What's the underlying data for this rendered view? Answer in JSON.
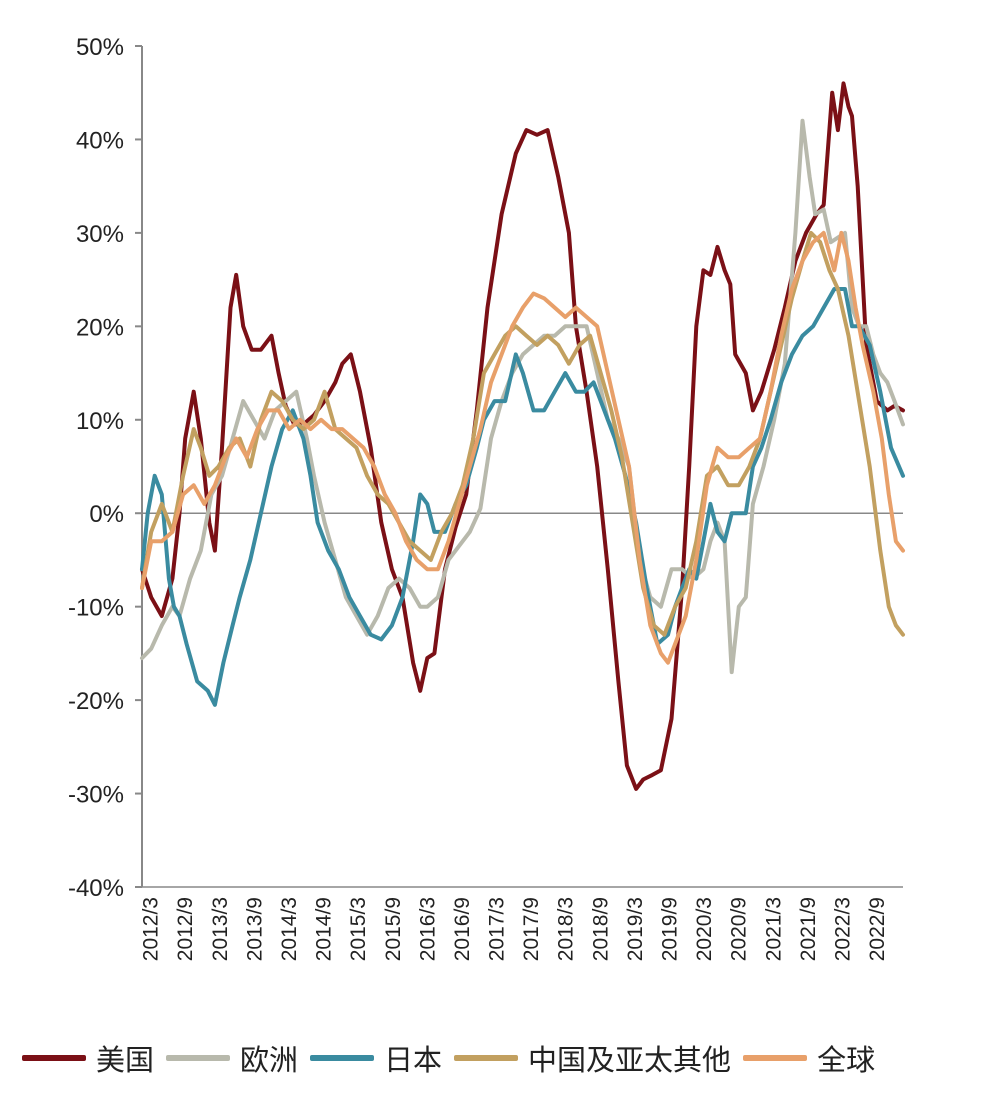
{
  "chart_data": {
    "type": "line",
    "title": "",
    "xlabel": "",
    "ylabel": "",
    "ylim": [
      -40,
      50
    ],
    "yticks": [
      50,
      40,
      30,
      20,
      10,
      0,
      -10,
      -20,
      -30,
      -40
    ],
    "ytick_labels": [
      "50%",
      "40%",
      "30%",
      "20%",
      "10%",
      "0%",
      "-10%",
      "-20%",
      "-30%",
      "-40%"
    ],
    "x_range": [
      2012.17,
      2022.92
    ],
    "xtick_labels": [
      "2012/3",
      "2012/9",
      "2013/3",
      "2013/9",
      "2014/3",
      "2014/9",
      "2015/3",
      "2015/9",
      "2016/3",
      "2016/9",
      "2017/3",
      "2017/9",
      "2018/3",
      "2018/9",
      "2019/3",
      "2019/9",
      "2020/3",
      "2020/9",
      "2021/3",
      "2021/9",
      "2022/3",
      "2022/9"
    ],
    "zero_line": true,
    "legend_position": "bottom",
    "series": [
      {
        "name": "美国",
        "color": "#7b1016",
        "x": [
          2012.17,
          2012.3,
          2012.45,
          2012.6,
          2012.7,
          2012.78,
          2012.9,
          2013.0,
          2013.12,
          2013.2,
          2013.3,
          2013.42,
          2013.5,
          2013.6,
          2013.72,
          2013.85,
          2014.0,
          2014.1,
          2014.2,
          2014.32,
          2014.45,
          2014.6,
          2014.75,
          2014.9,
          2015.0,
          2015.12,
          2015.25,
          2015.4,
          2015.55,
          2015.7,
          2015.85,
          2016.0,
          2016.1,
          2016.2,
          2016.3,
          2016.45,
          2016.6,
          2016.75,
          2016.9,
          2017.05,
          2017.25,
          2017.45,
          2017.6,
          2017.75,
          2017.9,
          2018.05,
          2018.2,
          2018.3,
          2018.45,
          2018.6,
          2018.75,
          2018.9,
          2019.02,
          2019.15,
          2019.25,
          2019.38,
          2019.5,
          2019.65,
          2019.8,
          2019.9,
          2020.0,
          2020.1,
          2020.2,
          2020.3,
          2020.4,
          2020.48,
          2020.55,
          2020.7,
          2020.8,
          2020.92,
          2021.0,
          2021.1,
          2021.25,
          2021.4,
          2021.55,
          2021.7,
          2021.8,
          2021.92,
          2022.0,
          2022.08,
          2022.15,
          2022.2,
          2022.28,
          2022.33,
          2022.4,
          2022.55,
          2022.7,
          2022.8,
          2022.92
        ],
        "y": [
          -6,
          -9,
          -11,
          -7,
          0,
          8,
          13,
          8,
          -1,
          -4,
          7,
          22,
          25.5,
          20,
          17.5,
          17.5,
          19,
          15,
          11.5,
          9.5,
          9.5,
          10.5,
          12,
          14,
          16,
          17,
          13,
          7,
          -1,
          -6,
          -9,
          -16,
          -19,
          -15.5,
          -15,
          -6,
          -1.5,
          2,
          11,
          22,
          32,
          38.5,
          41,
          40.5,
          41,
          36,
          30,
          20,
          13,
          5,
          -6,
          -18,
          -27,
          -29.5,
          -28.5,
          -28,
          -27.5,
          -22,
          -8,
          5,
          20,
          26,
          25.5,
          28.5,
          26,
          24.5,
          17,
          15,
          11,
          13,
          15,
          17.5,
          22,
          27,
          30,
          32,
          33,
          45,
          41,
          46,
          43.5,
          42.5,
          35,
          28,
          18,
          12,
          11,
          11.5,
          11
        ]
      },
      {
        "name": "欧洲",
        "color": "#b8b9ac",
        "x": [
          2012.17,
          2012.3,
          2012.45,
          2012.6,
          2012.7,
          2012.85,
          2013.0,
          2013.15,
          2013.3,
          2013.45,
          2013.6,
          2013.75,
          2013.9,
          2014.05,
          2014.2,
          2014.35,
          2014.5,
          2014.6,
          2014.75,
          2014.9,
          2015.05,
          2015.2,
          2015.35,
          2015.5,
          2015.65,
          2015.8,
          2015.95,
          2016.1,
          2016.2,
          2016.35,
          2016.5,
          2016.65,
          2016.8,
          2016.95,
          2017.1,
          2017.25,
          2017.4,
          2017.55,
          2017.7,
          2017.85,
          2018.0,
          2018.15,
          2018.3,
          2018.45,
          2018.6,
          2018.75,
          2018.9,
          2019.05,
          2019.2,
          2019.35,
          2019.5,
          2019.65,
          2019.8,
          2019.95,
          2020.1,
          2020.2,
          2020.3,
          2020.4,
          2020.5,
          2020.6,
          2020.7,
          2020.8,
          2020.95,
          2021.1,
          2021.25,
          2021.4,
          2021.5,
          2021.6,
          2021.68,
          2021.8,
          2021.9,
          2022.0,
          2022.1,
          2022.2,
          2022.3,
          2022.4,
          2022.5,
          2022.6,
          2022.7,
          2022.8,
          2022.92
        ],
        "y": [
          -15.5,
          -14.5,
          -12,
          -10,
          -11,
          -7,
          -4,
          2,
          4,
          8,
          12,
          10,
          8,
          11,
          12,
          13,
          8,
          4,
          -1,
          -5,
          -9,
          -11,
          -13,
          -11,
          -8,
          -7,
          -8,
          -10,
          -10,
          -9,
          -5,
          -3.5,
          -2,
          0.5,
          8,
          12,
          15,
          17,
          18,
          19,
          19,
          20,
          20,
          20,
          15,
          10,
          8,
          5,
          -5,
          -9,
          -10,
          -6,
          -6,
          -7,
          -6,
          -3,
          -1,
          -3,
          -17,
          -10,
          -9,
          1,
          5,
          10,
          16,
          30,
          42,
          36,
          32,
          32.5,
          29,
          29.5,
          30,
          22,
          20,
          20,
          17,
          15,
          14,
          12,
          9.5
        ]
      },
      {
        "name": "日本",
        "color": "#3a8ba0",
        "x": [
          2012.17,
          2012.25,
          2012.35,
          2012.45,
          2012.55,
          2012.62,
          2012.7,
          2012.8,
          2012.95,
          2013.1,
          2013.2,
          2013.32,
          2013.45,
          2013.55,
          2013.7,
          2013.85,
          2014.0,
          2014.15,
          2014.3,
          2014.45,
          2014.55,
          2014.65,
          2014.8,
          2014.95,
          2015.1,
          2015.25,
          2015.4,
          2015.55,
          2015.7,
          2015.85,
          2016.0,
          2016.1,
          2016.2,
          2016.3,
          2016.45,
          2016.6,
          2016.75,
          2016.9,
          2017.0,
          2017.15,
          2017.3,
          2017.45,
          2017.55,
          2017.7,
          2017.85,
          2018.0,
          2018.15,
          2018.3,
          2018.42,
          2018.55,
          2018.7,
          2018.85,
          2019.0,
          2019.15,
          2019.3,
          2019.45,
          2019.6,
          2019.7,
          2019.8,
          2019.9,
          2020.0,
          2020.1,
          2020.2,
          2020.3,
          2020.4,
          2020.5,
          2020.6,
          2020.7,
          2020.8,
          2020.92,
          2021.05,
          2021.2,
          2021.35,
          2021.5,
          2021.65,
          2021.8,
          2021.95,
          2022.1,
          2022.2,
          2022.3,
          2022.45,
          2022.6,
          2022.75,
          2022.92
        ],
        "y": [
          -6,
          0,
          4,
          2,
          -7,
          -10,
          -11,
          -14,
          -18,
          -19,
          -20.5,
          -16,
          -12,
          -9,
          -5,
          0,
          5,
          9,
          11,
          8,
          4,
          -1,
          -4,
          -6,
          -9,
          -11,
          -13,
          -13.5,
          -12,
          -9,
          -3,
          2,
          1,
          -2,
          -2,
          1,
          3,
          7,
          10,
          12,
          12,
          17,
          15,
          11,
          11,
          13,
          15,
          13,
          13,
          14,
          11,
          8,
          4,
          -1,
          -8,
          -14,
          -13,
          -10,
          -8,
          -6,
          -7,
          -3,
          1,
          -2,
          -3,
          0,
          0,
          0,
          5,
          7,
          10,
          14,
          17,
          19,
          20,
          22,
          24,
          24,
          20,
          20,
          18,
          13,
          7,
          4
        ]
      },
      {
        "name": "中国及亚太其他",
        "color": "#c2a060",
        "x": [
          2012.17,
          2012.3,
          2012.45,
          2012.6,
          2012.75,
          2012.9,
          2013.0,
          2013.12,
          2013.25,
          2013.4,
          2013.55,
          2013.7,
          2013.85,
          2014.0,
          2014.15,
          2014.3,
          2014.45,
          2014.6,
          2014.75,
          2014.9,
          2015.05,
          2015.2,
          2015.35,
          2015.5,
          2015.65,
          2015.8,
          2015.95,
          2016.1,
          2016.25,
          2016.4,
          2016.55,
          2016.7,
          2016.85,
          2017.0,
          2017.15,
          2017.3,
          2017.45,
          2017.6,
          2017.75,
          2017.9,
          2018.05,
          2018.2,
          2018.35,
          2018.5,
          2018.65,
          2018.8,
          2018.95,
          2019.1,
          2019.25,
          2019.4,
          2019.55,
          2019.7,
          2019.85,
          2020.0,
          2020.15,
          2020.3,
          2020.45,
          2020.6,
          2020.75,
          2020.9,
          2021.05,
          2021.2,
          2021.35,
          2021.5,
          2021.62,
          2021.75,
          2021.88,
          2022.0,
          2022.15,
          2022.3,
          2022.45,
          2022.6,
          2022.72,
          2022.82,
          2022.92
        ],
        "y": [
          -8,
          -2,
          1,
          -2,
          4,
          9,
          7,
          4,
          5,
          7,
          8,
          5,
          10,
          13,
          12,
          10,
          9,
          10,
          13,
          9,
          8,
          7,
          4,
          2,
          1,
          -1,
          -3,
          -4,
          -5,
          -2,
          0,
          3,
          8,
          15,
          17,
          19,
          20,
          19,
          18,
          19,
          18,
          16,
          18,
          19,
          15,
          11,
          6,
          -1,
          -8,
          -12,
          -13,
          -10,
          -8,
          -3,
          4,
          5,
          3,
          3,
          5,
          8,
          13,
          18,
          23,
          27,
          30,
          29,
          26,
          24,
          19,
          12,
          5,
          -4,
          -10,
          -12,
          -13
        ]
      },
      {
        "name": "全球",
        "color": "#e8a06a",
        "x": [
          2012.17,
          2012.3,
          2012.45,
          2012.6,
          2012.75,
          2012.9,
          2013.05,
          2013.2,
          2013.35,
          2013.5,
          2013.65,
          2013.8,
          2013.95,
          2014.1,
          2014.25,
          2014.4,
          2014.55,
          2014.7,
          2014.85,
          2015.0,
          2015.15,
          2015.3,
          2015.45,
          2015.6,
          2015.75,
          2015.9,
          2016.05,
          2016.2,
          2016.35,
          2016.5,
          2016.65,
          2016.8,
          2016.95,
          2017.1,
          2017.25,
          2017.4,
          2017.55,
          2017.7,
          2017.85,
          2018.0,
          2018.15,
          2018.3,
          2018.45,
          2018.6,
          2018.75,
          2018.9,
          2019.05,
          2019.2,
          2019.35,
          2019.5,
          2019.6,
          2019.7,
          2019.85,
          2020.0,
          2020.15,
          2020.3,
          2020.45,
          2020.6,
          2020.75,
          2020.9,
          2021.05,
          2021.2,
          2021.35,
          2021.5,
          2021.65,
          2021.8,
          2021.95,
          2022.05,
          2022.15,
          2022.25,
          2022.35,
          2022.5,
          2022.62,
          2022.72,
          2022.82,
          2022.92
        ],
        "y": [
          -8,
          -3,
          -3,
          -2,
          2,
          3,
          1,
          3,
          6,
          8,
          6,
          9,
          11,
          11,
          9,
          10,
          9,
          10,
          9,
          9,
          8,
          7,
          5,
          2,
          0,
          -3,
          -5,
          -6,
          -6,
          -3,
          1,
          5,
          9,
          14,
          17,
          20,
          22,
          23.5,
          23,
          22,
          21,
          22,
          21,
          20,
          15,
          10,
          5,
          -5,
          -12,
          -15,
          -16,
          -14,
          -11,
          -5,
          3,
          7,
          6,
          6,
          7,
          8,
          13,
          19,
          24,
          27,
          29,
          30,
          26,
          30,
          27,
          22,
          18,
          13,
          8,
          2,
          -3,
          -4
        ]
      }
    ]
  },
  "legend": {
    "items": [
      {
        "label": "美国",
        "color": "#7b1016"
      },
      {
        "label": "欧洲",
        "color": "#b8b9ac"
      },
      {
        "label": "日本",
        "color": "#3a8ba0"
      },
      {
        "label": "中国及亚太其他",
        "color": "#c2a060"
      },
      {
        "label": "全球",
        "color": "#e8a06a"
      }
    ]
  }
}
